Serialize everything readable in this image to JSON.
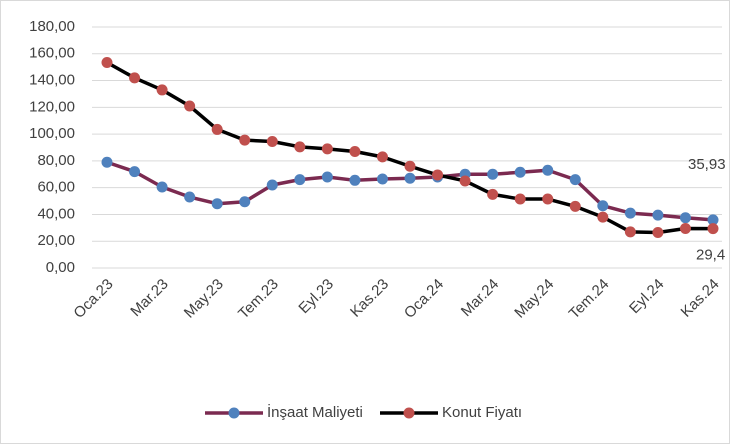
{
  "chart_data": {
    "type": "line",
    "categories": [
      "Oca.23",
      null,
      "Mar.23",
      null,
      "May.23",
      null,
      "Tem.23",
      null,
      "Eyl.23",
      null,
      "Kas.23",
      null,
      "Oca.24",
      null,
      "Mar.24",
      null,
      "May.24",
      null,
      "Tem.24",
      null,
      "Eyl.24",
      null,
      "Kas.24"
    ],
    "series": [
      {
        "name": "İnşaat Maliyeti",
        "color": "#7b2a50",
        "marker_color": "#4f81bd",
        "values": [
          79,
          72,
          60.5,
          53,
          48,
          49.5,
          62,
          66,
          68,
          65.5,
          66.5,
          67,
          68,
          70,
          70,
          71.5,
          73,
          66,
          46.5,
          41,
          39.5,
          37.5,
          35.93
        ],
        "value_labels": [
          null,
          null,
          null,
          null,
          null,
          null,
          null,
          null,
          null,
          null,
          null,
          null,
          null,
          null,
          null,
          null,
          null,
          null,
          null,
          null,
          null,
          null,
          "35,93"
        ]
      },
      {
        "name": "Konut Fiyatı",
        "color": "#000000",
        "marker_color": "#c0504d",
        "values": [
          153.5,
          142,
          133,
          121,
          103.5,
          95.5,
          94.5,
          90.5,
          89,
          87,
          83,
          76,
          69.5,
          65,
          55,
          51.5,
          51.5,
          46,
          38,
          27,
          26.5,
          29.5,
          29.4
        ],
        "value_labels": [
          null,
          null,
          null,
          null,
          null,
          null,
          null,
          null,
          null,
          null,
          null,
          null,
          null,
          null,
          null,
          null,
          null,
          null,
          null,
          null,
          null,
          null,
          "29,4"
        ]
      }
    ],
    "ylim": [
      0,
      180
    ],
    "yticks": [
      {
        "value": 0,
        "label": "0,00"
      },
      {
        "value": 20,
        "label": "20,00"
      },
      {
        "value": 40,
        "label": "40,00"
      },
      {
        "value": 60,
        "label": "60,00"
      },
      {
        "value": 80,
        "label": "80,00"
      },
      {
        "value": 100,
        "label": "100,00"
      },
      {
        "value": 120,
        "label": "120,00"
      },
      {
        "value": 140,
        "label": "140,00"
      },
      {
        "value": 160,
        "label": "160,00"
      },
      {
        "value": 180,
        "label": "180,00"
      }
    ],
    "grid": true,
    "legend": "bottom"
  }
}
